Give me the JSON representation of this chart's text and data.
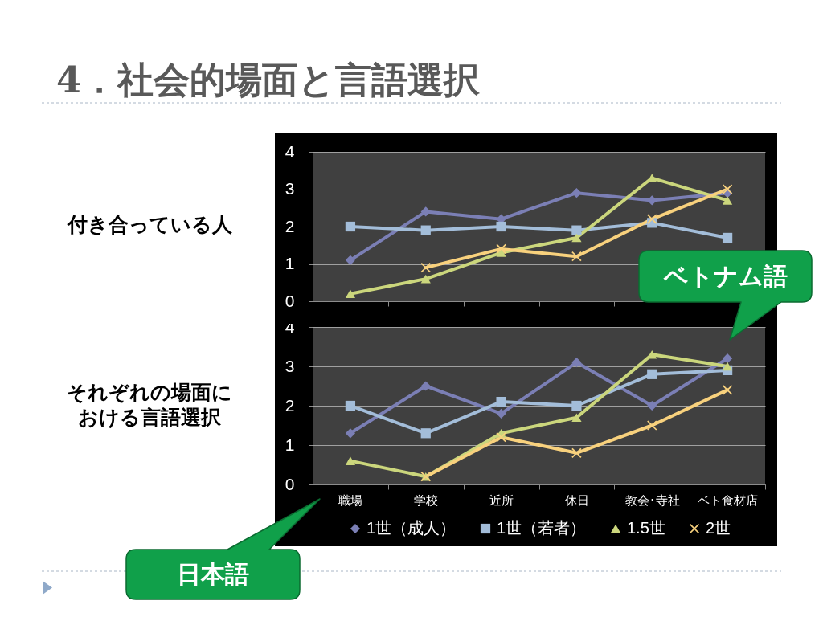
{
  "chart_data": [
    {
      "type": "line",
      "title": "4．社会的場面と言語選択",
      "categories": [
        null,
        null,
        null,
        null,
        null,
        null
      ],
      "series": [
        {
          "color": "#7b7fb5",
          "marker": "diamond",
          "values": [
            1.1,
            2.4,
            2.2,
            2.9,
            2.7,
            2.9
          ]
        },
        {
          "color": "#a3bdd9",
          "marker": "square",
          "values": [
            2.0,
            1.9,
            2.0,
            1.9,
            2.1,
            1.7
          ]
        },
        {
          "color": "#cbd67c",
          "marker": "triangle",
          "values": [
            0.2,
            0.6,
            1.3,
            1.7,
            3.3,
            2.7
          ]
        },
        {
          "color": "#f8d17d",
          "marker": "cross",
          "values": [
            null,
            0.9,
            1.4,
            1.2,
            2.2,
            3.0
          ]
        }
      ],
      "ylim": [
        0,
        4
      ],
      "yticks": [
        0,
        1,
        2,
        3,
        4
      ],
      "grid": "y",
      "annotations": [
        "付き合っている人",
        "ベトナム語"
      ]
    },
    {
      "type": "line",
      "categories": [
        "職場",
        "学校",
        "近所",
        "休日",
        "教会･寺社",
        "ベト食材店"
      ],
      "series": [
        {
          "name": "1世（成人）",
          "color": "#7b7fb5",
          "marker": "diamond",
          "values": [
            1.3,
            2.5,
            1.8,
            3.1,
            2.0,
            3.2
          ]
        },
        {
          "name": "1世（若者）",
          "color": "#a3bdd9",
          "marker": "square",
          "values": [
            2.0,
            1.3,
            2.1,
            2.0,
            2.8,
            2.9
          ]
        },
        {
          "name": "1.5世",
          "color": "#cbd67c",
          "marker": "triangle",
          "values": [
            0.6,
            0.2,
            1.3,
            1.7,
            3.3,
            3.0
          ]
        },
        {
          "name": "2世",
          "color": "#f8d17d",
          "marker": "cross",
          "values": [
            null,
            0.2,
            1.2,
            0.8,
            1.5,
            2.4
          ]
        }
      ],
      "ylim": [
        0,
        4
      ],
      "yticks": [
        0,
        1,
        2,
        3,
        4
      ],
      "grid": "y",
      "legend": "bottom",
      "annotations": [
        "それぞれの場面における言語選択",
        "日本語"
      ]
    }
  ]
}
